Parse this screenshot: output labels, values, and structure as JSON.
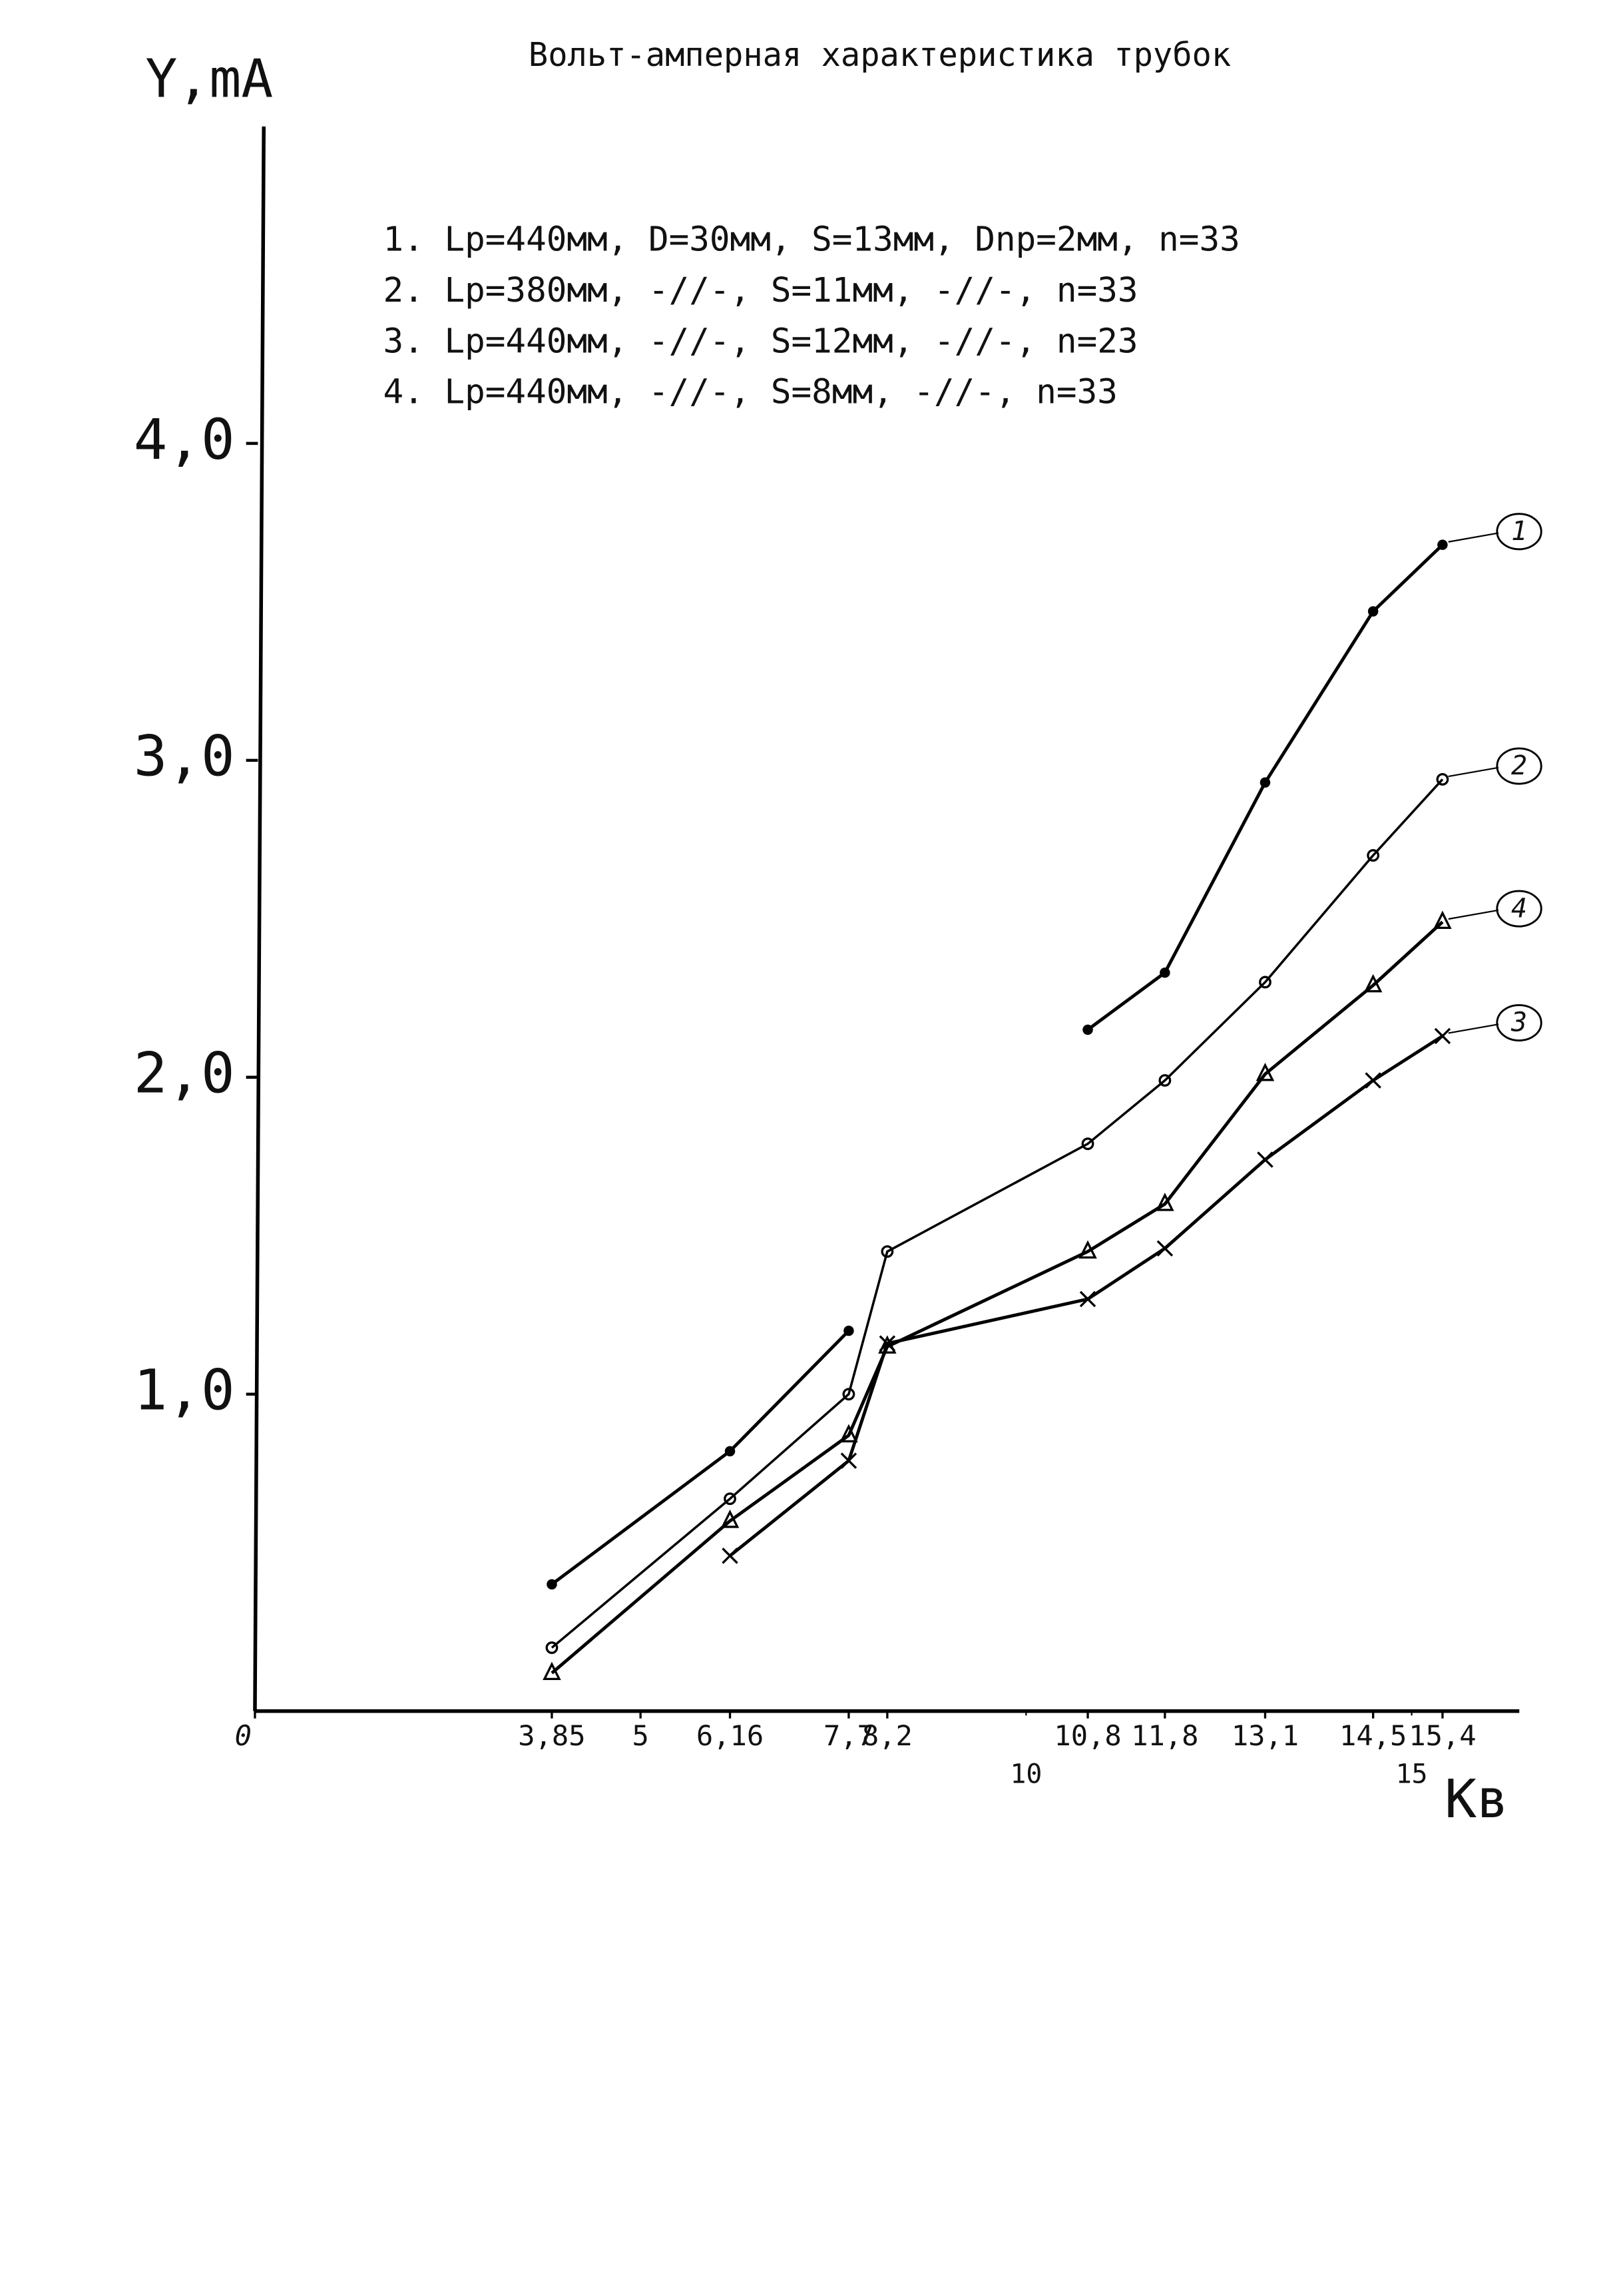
{
  "chart_data": {
    "type": "line",
    "title": "Вольт-амперная характеристика трубок",
    "y_label": "Y,mA",
    "x_label": "Кв",
    "notes": [
      "1. Lp=440мм, D=30мм, S=13мм, Dnp=2мм, n=33",
      "2. Lp=380мм, -//-, S=11мм, -//-, n=33",
      "3. Lp=440мм, -//-, S=12мм, -//-, n=23",
      "4. Lp=440мм, -//-, S=8мм, -//-, n=33"
    ],
    "x": [
      3.85,
      6.16,
      7.7,
      8.2,
      10.8,
      11.8,
      13.1,
      14.5,
      15.4
    ],
    "series": [
      {
        "name": "1",
        "color": "#000000",
        "marker": "dot",
        "values": [
          0.4,
          0.82,
          1.2,
          null,
          2.15,
          2.33,
          2.93,
          3.47,
          3.68
        ]
      },
      {
        "name": "2",
        "color": "#000000",
        "marker": "circle",
        "values": [
          0.2,
          0.67,
          1.0,
          1.45,
          1.79,
          1.99,
          2.3,
          2.7,
          2.94
        ]
      },
      {
        "name": "4",
        "color": "#000000",
        "marker": "triangle",
        "values": [
          0.12,
          0.6,
          0.87,
          1.15,
          1.45,
          1.6,
          2.01,
          2.29,
          2.49
        ]
      },
      {
        "name": "3",
        "color": "#000000",
        "marker": "cross",
        "values": [
          null,
          0.49,
          0.79,
          1.16,
          1.3,
          1.46,
          1.74,
          1.99,
          2.13
        ]
      }
    ],
    "xlim": [
      0,
      16.4
    ],
    "ylim": [
      0,
      5
    ],
    "xticks": [
      0,
      {
        "value": 3.85,
        "label": "3,85"
      },
      5,
      {
        "value": 6.16,
        "label": "6,16"
      },
      {
        "value": 7.7,
        "label": "7,7"
      },
      {
        "value": 8.2,
        "label": "8,2"
      },
      {
        "value": 10.8,
        "label": "10,8"
      },
      {
        "value": 11.8,
        "label": "11,8"
      },
      {
        "value": 13.1,
        "label": "13,1"
      },
      {
        "value": 14.5,
        "label": "14,5"
      },
      {
        "value": 15.4,
        "label": "15,4"
      }
    ],
    "xticks_minor": [
      10,
      15
    ],
    "yticks": [
      {
        "value": 1,
        "label": "1,0"
      },
      {
        "value": 2,
        "label": "2,0"
      },
      {
        "value": 3,
        "label": "3,0"
      },
      {
        "value": 4,
        "label": "4,0"
      }
    ],
    "grid": false
  }
}
